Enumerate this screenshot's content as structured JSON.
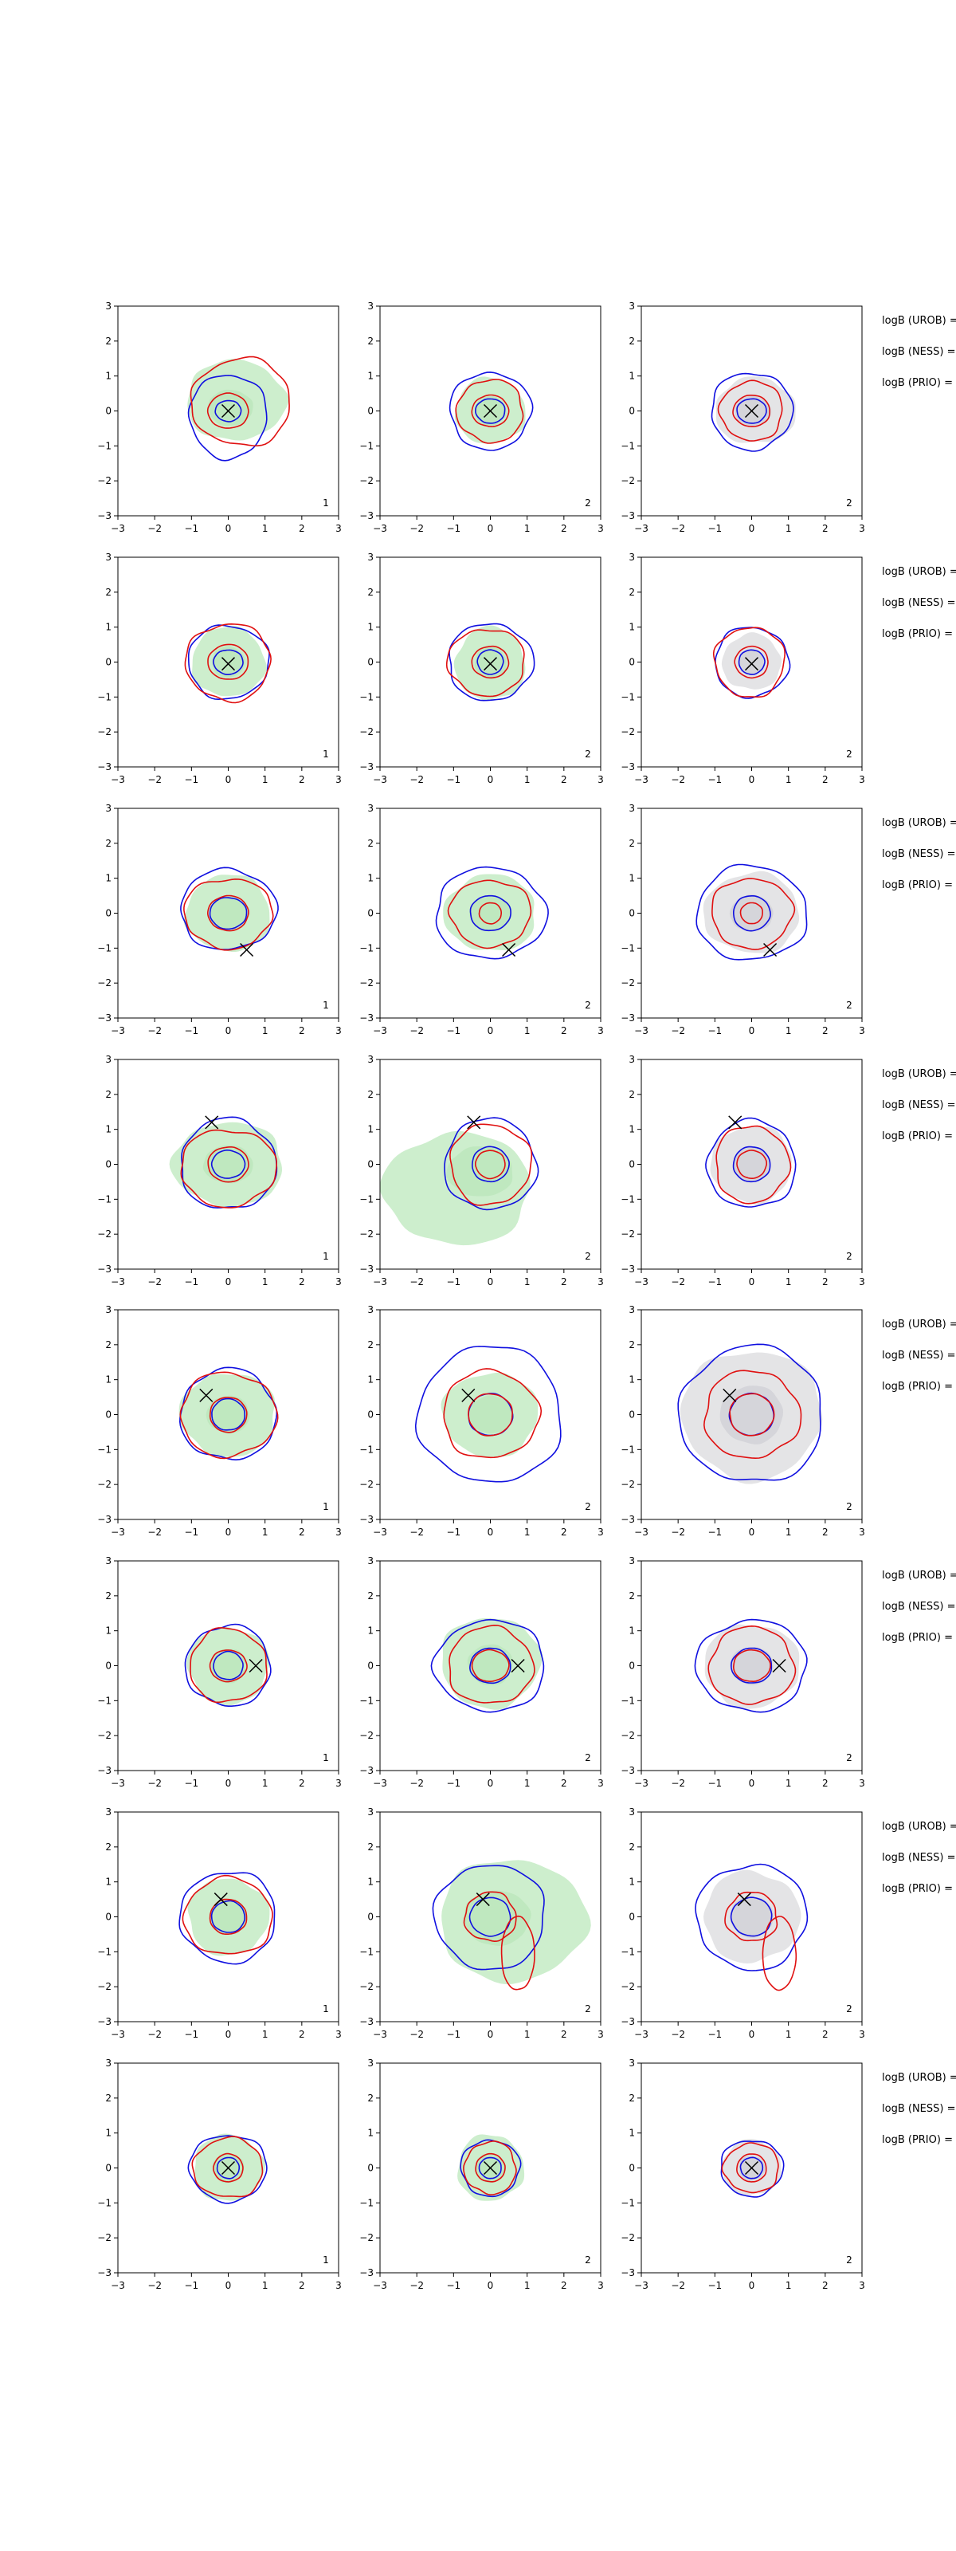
{
  "chart_data": {
    "type": "contour",
    "layout": {
      "rows": 8,
      "cols": 3
    },
    "axes": {
      "xlim": [
        -3,
        3
      ],
      "ylim": [
        -3,
        3
      ],
      "xticks": [
        "−3",
        "−2",
        "−1",
        "0",
        "1",
        "2",
        "3"
      ],
      "yticks": [
        "−3",
        "−2",
        "−1",
        "0",
        "1",
        "2",
        "3"
      ]
    },
    "colors": {
      "fill_green": "#cdeecd",
      "fill_grey": "#e4e4e6",
      "fill_dark_grey": "#c9c9cf",
      "contour_blue": "#1010e0",
      "contour_red": "#e01010",
      "marker": "#000000"
    },
    "column_fill": [
      "green",
      "green",
      "grey"
    ],
    "panel_labels": [
      "1",
      "2",
      "2"
    ],
    "side_labels": [
      "logB (UROB) =",
      "logB (NESS) =",
      "logB (PRIO) ="
    ],
    "rows": [
      {
        "marker": [
          0.0,
          0.0
        ],
        "panels": [
          {
            "fill": [
              0.2,
              0.3,
              1.35,
              1.15
            ],
            "blue": [
              [
                0.0,
                -0.15,
                1.05,
                1.2
              ],
              [
                0.0,
                0.0,
                0.35,
                0.3
              ]
            ],
            "red": [
              [
                0.35,
                0.25,
                1.35,
                1.25
              ],
              [
                0.0,
                0.0,
                0.55,
                0.5
              ]
            ]
          },
          {
            "fill": [
              0.0,
              0.0,
              0.95,
              0.95
            ],
            "blue": [
              [
                0.0,
                0.0,
                1.1,
                1.1
              ],
              [
                0.0,
                0.0,
                0.4,
                0.35
              ]
            ],
            "red": [
              [
                0.0,
                0.0,
                0.9,
                0.9
              ],
              [
                0.0,
                0.0,
                0.5,
                0.45
              ]
            ]
          },
          {
            "fill": [
              0.1,
              0.0,
              1.1,
              0.95
            ],
            "blue": [
              [
                0.0,
                0.0,
                1.1,
                1.1
              ],
              [
                0.0,
                0.0,
                0.4,
                0.35
              ]
            ],
            "red": [
              [
                0.0,
                0.0,
                0.85,
                0.85
              ],
              [
                0.0,
                0.0,
                0.5,
                0.45
              ]
            ]
          }
        ]
      },
      {
        "marker": [
          0.0,
          -0.05
        ],
        "panels": [
          {
            "fill": [
              0.0,
              0.0,
              1.0,
              1.0
            ],
            "blue": [
              [
                0.0,
                0.0,
                1.1,
                1.05
              ],
              [
                0.0,
                0.0,
                0.4,
                0.35
              ]
            ],
            "red": [
              [
                0.0,
                0.0,
                1.15,
                1.1
              ],
              [
                0.0,
                0.0,
                0.55,
                0.5
              ]
            ]
          },
          {
            "fill": [
              0.0,
              -0.05,
              0.95,
              1.05
            ],
            "blue": [
              [
                0.0,
                0.0,
                1.15,
                1.1
              ],
              [
                0.0,
                0.0,
                0.35,
                0.35
              ]
            ],
            "red": [
              [
                -0.1,
                0.0,
                1.05,
                0.95
              ],
              [
                0.0,
                0.0,
                0.5,
                0.45
              ]
            ]
          },
          {
            "fill": [
              0.0,
              0.0,
              0.8,
              0.8
            ],
            "blue": [
              [
                0.0,
                0.0,
                1.0,
                1.0
              ],
              [
                0.0,
                0.0,
                0.35,
                0.35
              ]
            ],
            "red": [
              [
                -0.05,
                0.0,
                0.95,
                1.0
              ],
              [
                0.0,
                0.0,
                0.45,
                0.45
              ]
            ]
          }
        ]
      },
      {
        "marker": [
          0.5,
          -1.05
        ],
        "panels": [
          {
            "fill": [
              0.0,
              0.0,
              1.15,
              1.1
            ],
            "blue": [
              [
                0.0,
                0.1,
                1.3,
                1.15
              ],
              [
                0.0,
                0.0,
                0.5,
                0.45
              ]
            ],
            "red": [
              [
                0.0,
                0.0,
                1.2,
                1.0
              ],
              [
                0.0,
                0.0,
                0.55,
                0.5
              ]
            ]
          },
          {
            "fill": [
              0.0,
              0.0,
              1.25,
              1.1
            ],
            "blue": [
              [
                0.0,
                0.0,
                1.5,
                1.3
              ],
              [
                0.0,
                0.0,
                0.55,
                0.5
              ]
            ],
            "red": [
              [
                0.0,
                0.0,
                1.1,
                0.95
              ],
              [
                0.0,
                0.0,
                0.3,
                0.3
              ]
            ]
          },
          {
            "fill": [
              0.0,
              0.0,
              1.3,
              1.15
            ],
            "blue": [
              [
                0.0,
                0.0,
                1.5,
                1.35
              ],
              [
                0.0,
                0.0,
                0.5,
                0.5
              ]
            ],
            "red": [
              [
                0.0,
                0.0,
                1.1,
                1.0
              ],
              [
                0.0,
                0.0,
                0.3,
                0.3
              ]
            ]
          }
        ]
      },
      {
        "marker": [
          -0.45,
          1.2
        ],
        "panels": [
          {
            "fill": [
              0.0,
              0.0,
              1.5,
              1.2
            ],
            "blue": [
              [
                0.0,
                0.0,
                1.3,
                1.3
              ],
              [
                0.0,
                0.0,
                0.45,
                0.4
              ]
            ],
            "red": [
              [
                0.0,
                -0.1,
                1.3,
                1.1
              ],
              [
                0.0,
                0.0,
                0.55,
                0.5
              ]
            ]
          },
          {
            "fill": [
              -0.9,
              -0.7,
              2.0,
              1.6
            ],
            "blue": [
              [
                0.0,
                0.0,
                1.25,
                1.3
              ],
              [
                0.0,
                0.0,
                0.5,
                0.5
              ]
            ],
            "red": [
              [
                0.0,
                0.0,
                1.1,
                1.15
              ],
              [
                0.0,
                0.0,
                0.4,
                0.4
              ]
            ]
          },
          {
            "fill": [
              0.0,
              0.0,
              1.1,
              1.1
            ],
            "blue": [
              [
                0.0,
                0.0,
                1.2,
                1.25
              ],
              [
                0.0,
                0.0,
                0.5,
                0.5
              ]
            ],
            "red": [
              [
                0.0,
                0.0,
                1.0,
                1.1
              ],
              [
                0.0,
                0.0,
                0.4,
                0.4
              ]
            ]
          }
        ]
      },
      {
        "marker": [
          -0.6,
          0.55
        ],
        "panels": [
          {
            "fill": [
              0.0,
              0.0,
              1.3,
              1.2
            ],
            "blue": [
              [
                0.0,
                0.0,
                1.3,
                1.3
              ],
              [
                0.0,
                0.0,
                0.45,
                0.45
              ]
            ],
            "red": [
              [
                0.0,
                0.0,
                1.3,
                1.2
              ],
              [
                0.0,
                0.0,
                0.5,
                0.5
              ]
            ]
          },
          {
            "fill": [
              0.0,
              0.0,
              1.3,
              1.2
            ],
            "blue": [
              [
                0.0,
                0.0,
                1.95,
                1.95
              ],
              [
                0.0,
                0.0,
                0.6,
                0.6
              ]
            ],
            "red": [
              [
                0.0,
                0.0,
                1.3,
                1.25
              ],
              [
                0.0,
                0.0,
                0.6,
                0.6
              ]
            ]
          },
          {
            "fill": [
              0.0,
              0.0,
              1.9,
              1.85
            ],
            "blue": [
              [
                0.0,
                0.0,
                1.95,
                1.95
              ],
              [
                0.0,
                0.0,
                0.6,
                0.6
              ]
            ],
            "red": [
              [
                0.0,
                0.0,
                1.3,
                1.25
              ],
              [
                0.0,
                0.0,
                0.6,
                0.6
              ]
            ]
          }
        ]
      },
      {
        "marker": [
          0.75,
          0.0
        ],
        "panels": [
          {
            "fill": [
              0.0,
              0.0,
              1.1,
              1.1
            ],
            "blue": [
              [
                0.0,
                0.0,
                1.15,
                1.15
              ],
              [
                0.0,
                0.0,
                0.4,
                0.4
              ]
            ],
            "red": [
              [
                0.0,
                0.0,
                1.05,
                1.05
              ],
              [
                0.0,
                0.0,
                0.5,
                0.45
              ]
            ]
          },
          {
            "fill": [
              0.0,
              0.1,
              1.35,
              1.3
            ],
            "blue": [
              [
                0.0,
                0.0,
                1.5,
                1.3
              ],
              [
                0.0,
                0.0,
                0.55,
                0.5
              ]
            ],
            "red": [
              [
                0.0,
                0.0,
                1.15,
                1.1
              ],
              [
                0.0,
                0.0,
                0.5,
                0.45
              ]
            ]
          },
          {
            "fill": [
              0.0,
              0.0,
              1.3,
              1.2
            ],
            "blue": [
              [
                0.0,
                0.0,
                1.5,
                1.3
              ],
              [
                0.0,
                0.0,
                0.55,
                0.5
              ]
            ],
            "red": [
              [
                0.0,
                0.0,
                1.15,
                1.1
              ],
              [
                0.0,
                0.0,
                0.5,
                0.45
              ]
            ]
          }
        ]
      },
      {
        "marker": [
          -0.2,
          0.5
        ],
        "panels": [
          {
            "fill": [
              0.0,
              0.0,
              1.1,
              1.1
            ],
            "blue": [
              [
                0.0,
                0.0,
                1.3,
                1.3
              ],
              [
                0.0,
                0.0,
                0.45,
                0.45
              ]
            ],
            "red": [
              [
                0.0,
                0.0,
                1.2,
                1.1
              ],
              [
                0.0,
                0.0,
                0.5,
                0.5
              ]
            ]
          },
          {
            "fill": [
              0.6,
              -0.1,
              2.0,
              1.75
            ],
            "blue": [
              [
                0.0,
                0.0,
                1.5,
                1.5
              ],
              [
                0.0,
                0.0,
                0.55,
                0.55
              ]
            ],
            "red": [
              [
                0.0,
                0.0,
                0.7,
                0.7
              ],
              [
                0.75,
                -1.05,
                0.45,
                1.05
              ]
            ]
          },
          {
            "fill": [
              0.0,
              0.0,
              1.3,
              1.3
            ],
            "blue": [
              [
                0.0,
                0.0,
                1.5,
                1.5
              ],
              [
                0.0,
                0.0,
                0.55,
                0.55
              ]
            ],
            "red": [
              [
                0.0,
                0.0,
                0.7,
                0.7
              ],
              [
                0.75,
                -1.05,
                0.45,
                1.05
              ]
            ]
          }
        ]
      },
      {
        "marker": [
          0.0,
          0.0
        ],
        "panels": [
          {
            "fill": [
              0.0,
              0.0,
              0.95,
              0.95
            ],
            "blue": [
              [
                0.0,
                0.0,
                1.05,
                0.95
              ],
              [
                0.0,
                0.0,
                0.3,
                0.3
              ]
            ],
            "red": [
              [
                0.0,
                0.0,
                0.95,
                0.85
              ],
              [
                0.0,
                0.0,
                0.4,
                0.4
              ]
            ]
          },
          {
            "fill": [
              0.0,
              0.0,
              0.9,
              0.95
            ],
            "blue": [
              [
                0.0,
                0.0,
                0.8,
                0.8
              ],
              [
                0.0,
                0.0,
                0.3,
                0.3
              ]
            ],
            "red": [
              [
                0.0,
                0.0,
                0.7,
                0.75
              ],
              [
                0.0,
                0.0,
                0.4,
                0.4
              ]
            ]
          },
          {
            "fill": [
              0.0,
              0.0,
              0.8,
              0.8
            ],
            "blue": [
              [
                0.0,
                0.0,
                0.85,
                0.8
              ],
              [
                0.0,
                0.0,
                0.3,
                0.3
              ]
            ],
            "red": [
              [
                0.0,
                0.0,
                0.75,
                0.7
              ],
              [
                0.0,
                0.0,
                0.4,
                0.4
              ]
            ]
          }
        ]
      }
    ]
  }
}
